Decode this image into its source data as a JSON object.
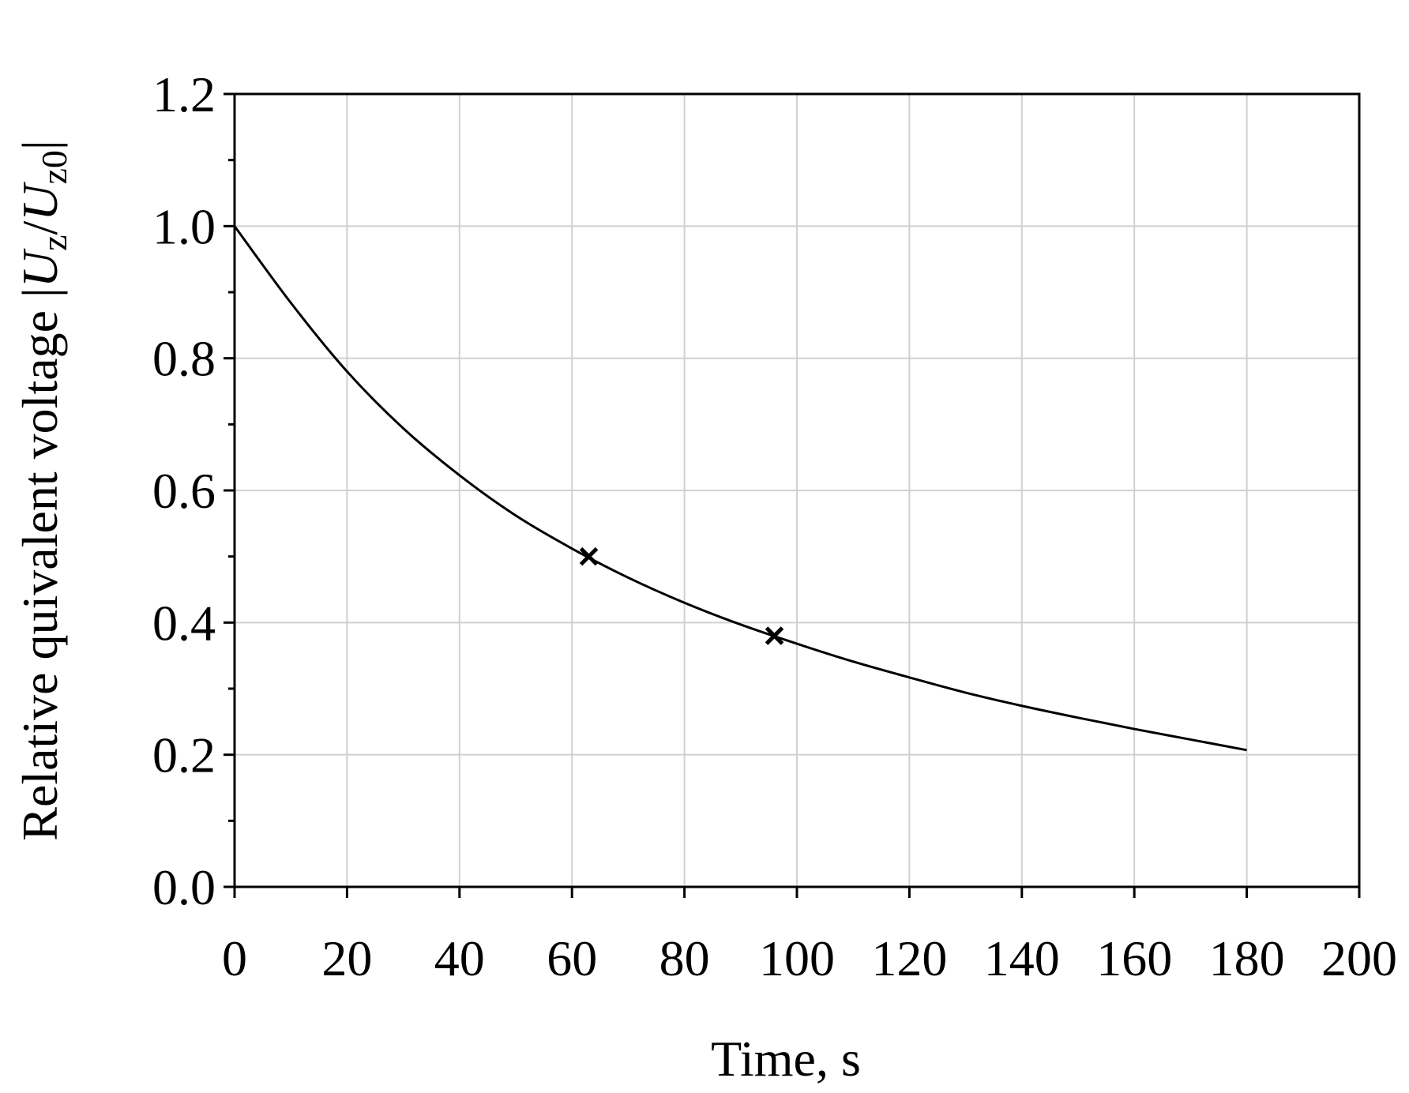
{
  "chart_data": {
    "type": "line",
    "xlabel": "Time, s",
    "ylabel": {
      "prefix": "Relative quivalent voltage |",
      "u1": "U",
      "s1": "z",
      "slash": "/",
      "u2": "U",
      "s2": "z0",
      "suffix": "|"
    },
    "xlim": [
      0,
      200
    ],
    "ylim": [
      0,
      1.2
    ],
    "xticks": [
      "0",
      "20",
      "40",
      "60",
      "80",
      "100",
      "120",
      "140",
      "160",
      "180",
      "200"
    ],
    "yticks": [
      "0.0",
      "0.2",
      "0.4",
      "0.6",
      "0.8",
      "1.0",
      "1.2"
    ],
    "grid": true,
    "series": [
      {
        "x": [
          0,
          10,
          20,
          30,
          40,
          50,
          60,
          70,
          80,
          90,
          100,
          110,
          120,
          130,
          140,
          150,
          160,
          170,
          180
        ],
        "y": [
          1.0,
          0.884,
          0.78,
          0.694,
          0.623,
          0.562,
          0.512,
          0.468,
          0.43,
          0.397,
          0.368,
          0.341,
          0.317,
          0.294,
          0.274,
          0.256,
          0.239,
          0.223,
          0.207
        ]
      }
    ],
    "markers": [
      {
        "x": 63,
        "y": 0.5
      },
      {
        "x": 96,
        "y": 0.38
      }
    ],
    "marker_symbol": "x",
    "colors": {
      "line": "#000000",
      "grid": "#d0d0d0",
      "frame": "#000000"
    }
  }
}
